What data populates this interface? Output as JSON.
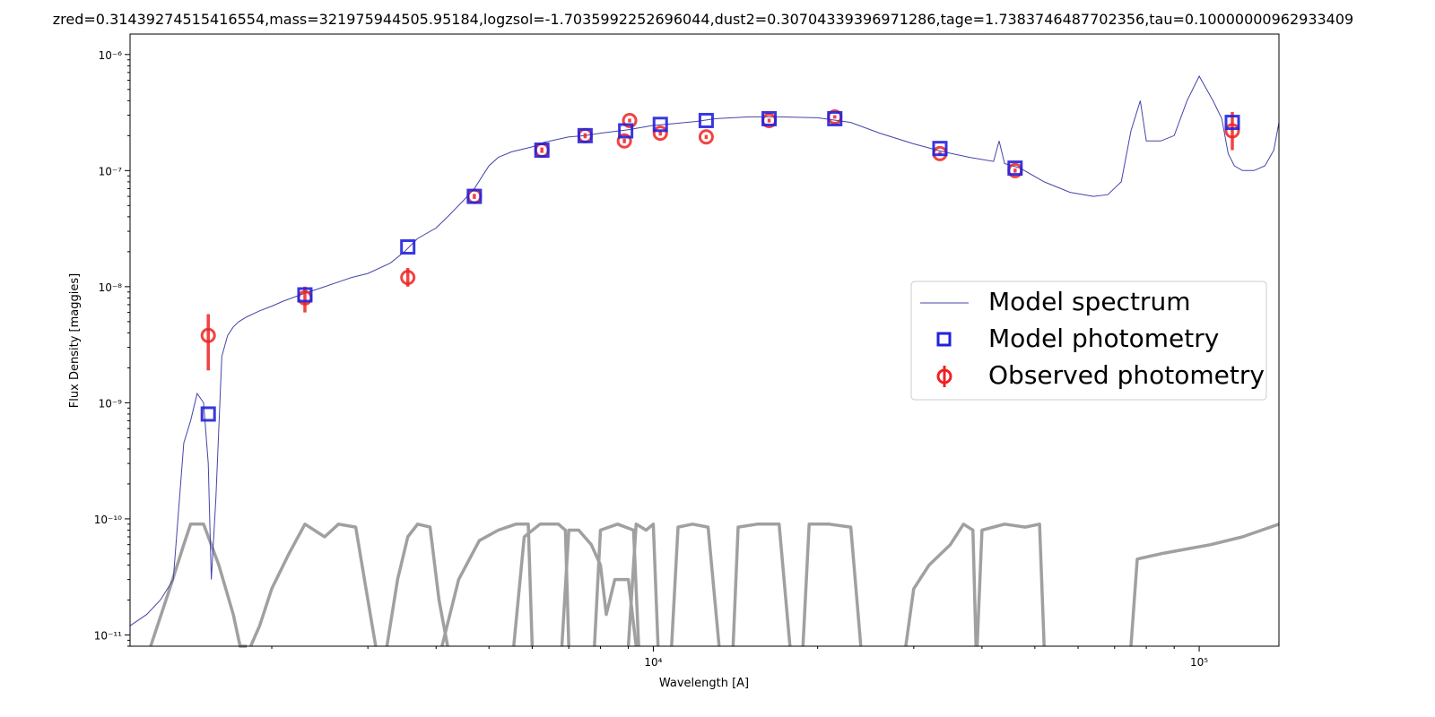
{
  "chart_data": {
    "type": "line",
    "title": "zred=0.31439274515416554,mass=321975944505.95184,logzsol=-1.7035992252696044,dust2=0.30704339396971286,tage=1.7383746487702356,tau=0.10000000962933409",
    "xlabel": "Wavelength [A]",
    "ylabel": "Flux Density [maggies]",
    "x_scale": "log",
    "y_scale": "log",
    "xlim": [
      1100,
      140000
    ],
    "ylim": [
      8e-12,
      1.5e-06
    ],
    "x_ticks": [
      {
        "value": 10000,
        "label": "10⁴"
      },
      {
        "value": 100000,
        "label": "10⁵"
      }
    ],
    "y_ticks": [
      {
        "value": 1e-11,
        "label": "10⁻¹¹"
      },
      {
        "value": 1e-10,
        "label": "10⁻¹⁰"
      },
      {
        "value": 1e-09,
        "label": "10⁻⁹"
      },
      {
        "value": 1e-08,
        "label": "10⁻⁸"
      },
      {
        "value": 1e-07,
        "label": "10⁻⁷"
      },
      {
        "value": 1e-06,
        "label": "10⁻⁶"
      }
    ],
    "legend": {
      "position": "center-right",
      "entries": [
        "Model spectrum",
        "Model photometry",
        "Observed photometry"
      ]
    },
    "colors": {
      "model_spectrum": "#4444aa",
      "model_photometry": "#2222dd",
      "observed_photometry": "#ee2222",
      "filters": "#a0a0a0"
    },
    "model_spectrum": {
      "x": [
        1100,
        1180,
        1250,
        1320,
        1380,
        1420,
        1460,
        1500,
        1530,
        1550,
        1580,
        1620,
        1660,
        1700,
        1740,
        1800,
        1900,
        2000,
        2100,
        2300,
        2500,
        2800,
        3000,
        3300,
        3500,
        3700,
        4000,
        4200,
        4500,
        4700,
        4900,
        5000,
        5200,
        5500,
        6000,
        6300,
        7000,
        7500,
        8000,
        9000,
        10000,
        11000,
        12000,
        13000,
        15000,
        17000,
        20000,
        23000,
        26000,
        30000,
        34000,
        38000,
        42000,
        43000,
        44000,
        47000,
        52000,
        58000,
        64000,
        68000,
        72000,
        75000,
        78000,
        80000,
        85000,
        90000,
        95000,
        100000,
        106000,
        110000,
        113000,
        116000,
        120000,
        126000,
        132000,
        137000,
        140000
      ],
      "y": [
        1.2e-11,
        1.5e-11,
        2e-11,
        3e-11,
        4.5e-10,
        7e-10,
        1.2e-09,
        1e-09,
        3e-10,
        3e-11,
        1.5e-10,
        2.5e-09,
        3.8e-09,
        4.5e-09,
        5e-09,
        5.5e-09,
        6.2e-09,
        6.8e-09,
        7.5e-09,
        8.8e-09,
        1e-08,
        1.2e-08,
        1.3e-08,
        1.6e-08,
        2e-08,
        2.6e-08,
        3.2e-08,
        4e-08,
        5.6e-08,
        7e-08,
        9.5e-08,
        1.1e-07,
        1.3e-07,
        1.45e-07,
        1.6e-07,
        1.75e-07,
        1.95e-07,
        2e-07,
        2.1e-07,
        2.25e-07,
        2.45e-07,
        2.55e-07,
        2.65e-07,
        2.8e-07,
        2.9e-07,
        2.9e-07,
        2.85e-07,
        2.6e-07,
        2.1e-07,
        1.7e-07,
        1.45e-07,
        1.3e-07,
        1.2e-07,
        1.8e-07,
        1.15e-07,
        1.05e-07,
        8e-08,
        6.5e-08,
        6e-08,
        6.2e-08,
        8e-08,
        2.2e-07,
        4e-07,
        1.8e-07,
        1.8e-07,
        2e-07,
        4e-07,
        6.5e-07,
        4e-07,
        2.8e-07,
        1.4e-07,
        1.1e-07,
        1e-07,
        1e-07,
        1.1e-07,
        1.5e-07,
        2.6e-07
      ]
    },
    "model_photometry": {
      "x": [
        1530,
        2300,
        3550,
        4700,
        6250,
        7500,
        8900,
        10300,
        12500,
        16300,
        21500,
        33500,
        46000,
        115000
      ],
      "y": [
        8e-10,
        8.5e-09,
        2.2e-08,
        6e-08,
        1.5e-07,
        2e-07,
        2.2e-07,
        2.5e-07,
        2.7e-07,
        2.8e-07,
        2.8e-07,
        1.55e-07,
        1.05e-07,
        2.6e-07
      ]
    },
    "observed_photometry": {
      "x": [
        1530,
        2300,
        3550,
        4700,
        6250,
        7500,
        8850,
        9050,
        10300,
        12500,
        16300,
        21500,
        33500,
        46000,
        115000
      ],
      "y": [
        3.8e-09,
        8e-09,
        1.2e-08,
        6e-08,
        1.5e-07,
        2e-07,
        1.8e-07,
        2.7e-07,
        2.1e-07,
        1.95e-07,
        2.7e-07,
        2.9e-07,
        1.4e-07,
        1e-07,
        2.2e-07
      ],
      "yerr_low": [
        1.9e-09,
        6e-09,
        1e-08,
        5.7e-08,
        1.42e-07,
        1.9e-07,
        1.72e-07,
        2.6e-07,
        2e-07,
        1.87e-07,
        2.6e-07,
        2.8e-07,
        1.35e-07,
        9.6e-08,
        1.5e-07
      ],
      "yerr_high": [
        5.8e-09,
        1e-08,
        1.45e-08,
        6.3e-08,
        1.58e-07,
        2.1e-07,
        1.88e-07,
        2.8e-07,
        2.2e-07,
        2.03e-07,
        2.8e-07,
        3e-07,
        1.45e-07,
        1.04e-07,
        3.2e-07
      ]
    },
    "filters": [
      {
        "x": [
          1200,
          1300,
          1380,
          1420,
          1500,
          1600,
          1700,
          1750,
          1800
        ],
        "y": [
          5e-12,
          2.5e-11,
          6e-11,
          9e-11,
          9e-11,
          4e-11,
          1.5e-11,
          8e-12,
          5e-12
        ]
      },
      {
        "x": [
          1830,
          1900,
          2000,
          2150,
          2300,
          2500,
          2650,
          2850,
          3000,
          3100
        ],
        "y": [
          5e-12,
          1.2e-11,
          2.5e-11,
          5e-11,
          9e-11,
          7e-11,
          9e-11,
          8.5e-11,
          2e-11,
          5e-12
        ]
      },
      {
        "x": [
          3250,
          3400,
          3550,
          3700,
          3900,
          4050,
          4200
        ],
        "y": [
          5e-12,
          3e-11,
          7e-11,
          9e-11,
          8.5e-11,
          2e-11,
          5e-12
        ]
      },
      {
        "x": [
          4100,
          4400,
          4800,
          5200,
          5600,
          5900,
          6000
        ],
        "y": [
          5e-12,
          3e-11,
          6.5e-11,
          8e-11,
          9e-11,
          9e-11,
          5e-12
        ]
      },
      {
        "x": [
          5550,
          5800,
          6200,
          6700,
          6900,
          7000
        ],
        "y": [
          5e-12,
          7e-11,
          9e-11,
          9e-11,
          8e-11,
          5e-12
        ]
      },
      {
        "x": [
          6800,
          7000,
          7300,
          7700,
          8000,
          8200,
          8500,
          9000,
          9300
        ],
        "y": [
          5e-12,
          8e-11,
          8e-11,
          6e-11,
          4e-11,
          1.5e-11,
          3e-11,
          3e-11,
          5e-12
        ]
      },
      {
        "x": [
          7800,
          8000,
          8600,
          9200,
          9400
        ],
        "y": [
          5e-12,
          8e-11,
          9e-11,
          8e-11,
          5e-12
        ]
      },
      {
        "x": [
          9000,
          9300,
          9700,
          10000,
          10200
        ],
        "y": [
          5e-12,
          9e-11,
          8e-11,
          9e-11,
          5e-12
        ]
      },
      {
        "x": [
          10800,
          11100,
          11800,
          12600,
          13200
        ],
        "y": [
          5e-12,
          8.5e-11,
          9e-11,
          8.5e-11,
          5e-12
        ]
      },
      {
        "x": [
          14000,
          14300,
          15500,
          17000,
          17800
        ],
        "y": [
          5e-12,
          8.5e-11,
          9e-11,
          9e-11,
          5e-12
        ]
      },
      {
        "x": [
          18800,
          19300,
          21000,
          23000,
          24000
        ],
        "y": [
          5e-12,
          9e-11,
          9e-11,
          8.5e-11,
          5e-12
        ]
      },
      {
        "x": [
          29000,
          30000,
          32000,
          35000,
          37000,
          38500,
          39000
        ],
        "y": [
          5e-12,
          2.5e-11,
          4e-11,
          6e-11,
          9e-11,
          8e-11,
          5e-12
        ]
      },
      {
        "x": [
          39200,
          40000,
          44000,
          48000,
          51000,
          52000
        ],
        "y": [
          5e-12,
          8e-11,
          9e-11,
          8.5e-11,
          9e-11,
          5e-12
        ]
      },
      {
        "x": [
          75000,
          77000,
          85000,
          95000,
          105000,
          120000,
          140000
        ],
        "y": [
          5e-12,
          4.5e-11,
          5e-11,
          5.5e-11,
          6e-11,
          7e-11,
          9e-11
        ]
      }
    ]
  }
}
